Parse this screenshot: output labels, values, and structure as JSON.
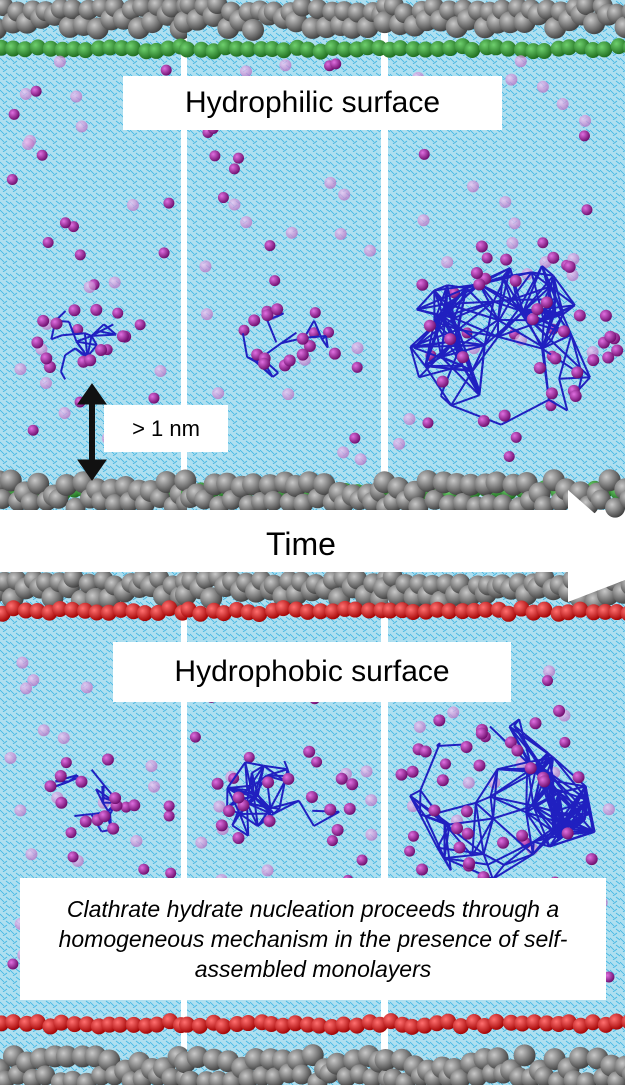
{
  "labels": {
    "hydrophilic_title": "Hydrophilic surface",
    "hydrophobic_title": "Hydrophobic surface",
    "scale": "> 1 nm",
    "time": "Time",
    "caption": "Clathrate hydrate nucleation proceeds through a homogeneous mechanism in the presence of self-assembled monolayers"
  },
  "colors": {
    "background": "#ffffff",
    "water": "#aedff0",
    "water_lines": "#3fb5e3",
    "carbon_atoms": "#6a6a6a",
    "hydrophilic_headgroup": "#2e8b2e",
    "hydrophobic_headgroup": "#e01010",
    "methane": "#8c1a8c",
    "methane_faded": "#cc7fd4",
    "hydrate_cages": "#2020c0",
    "arrow": "#111111"
  },
  "panels": {
    "rows": [
      "hydrophilic",
      "hydrophobic"
    ],
    "time_steps": 3
  },
  "clusters": {
    "hydrophilic": [
      "small",
      "small",
      "large"
    ],
    "hydrophobic": [
      "small",
      "medium",
      "large"
    ]
  }
}
